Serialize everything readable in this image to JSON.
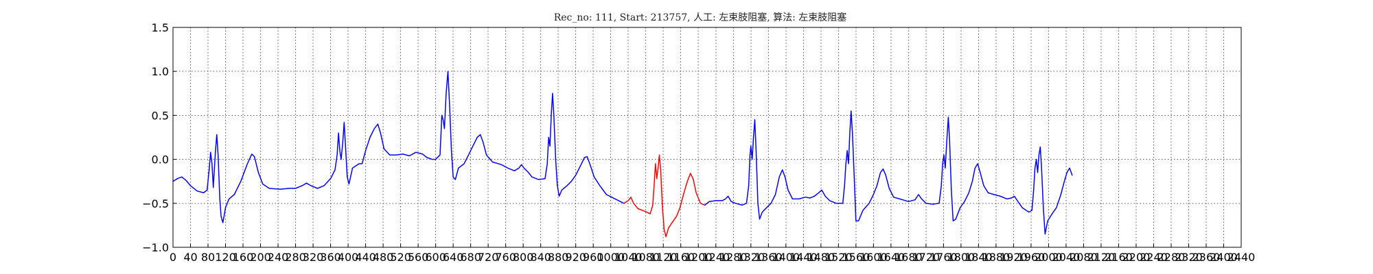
{
  "chart_data": {
    "type": "line",
    "title": "Rec_no: 111, Start: 213757, 人工: 左束肢阻塞, 算法: 左束肢阻塞",
    "xlabel": "",
    "ylabel": "",
    "xlim": [
      0,
      2440
    ],
    "ylim": [
      -1.0,
      1.5
    ],
    "grid": true,
    "x_tick_step": 40,
    "x_tick_labels": [
      "0",
      "40",
      "80",
      "120",
      "160",
      "200",
      "240",
      "280",
      "320",
      "360",
      "400",
      "440",
      "480",
      "520",
      "560",
      "600",
      "640",
      "680",
      "720",
      "760",
      "800",
      "840",
      "880",
      "920",
      "960",
      "1000",
      "1040",
      "1080",
      "1120",
      "1160",
      "1200",
      "1240",
      "1280",
      "1320",
      "1360",
      "1400",
      "1440",
      "1480",
      "1520",
      "1560",
      "1600",
      "1640",
      "1680",
      "1720",
      "1760",
      "1800",
      "1840",
      "1880",
      "1920",
      "1960",
      "2000",
      "2040",
      "2080",
      "2120",
      "2160",
      "2200",
      "2240",
      "2280",
      "2320",
      "2360",
      "2400",
      "2440"
    ],
    "y_ticks": [
      -1.0,
      -0.5,
      0.0,
      0.5,
      1.0,
      1.5
    ],
    "y_tick_labels": [
      "−1.0",
      "−0.5",
      "0.0",
      "0.5",
      "1.0",
      "1.5"
    ],
    "series": [
      {
        "color": "#0000ff",
        "points": [
          [
            0,
            -0.25
          ],
          [
            10,
            -0.22
          ],
          [
            20,
            -0.2
          ],
          [
            30,
            -0.24
          ],
          [
            40,
            -0.3
          ],
          [
            55,
            -0.36
          ],
          [
            70,
            -0.38
          ],
          [
            78,
            -0.35
          ],
          [
            83,
            -0.1
          ],
          [
            86,
            0.08
          ],
          [
            89,
            -0.05
          ],
          [
            92,
            -0.32
          ],
          [
            97,
            0.1
          ],
          [
            100,
            0.28
          ],
          [
            103,
            0.05
          ],
          [
            107,
            -0.45
          ],
          [
            110,
            -0.65
          ],
          [
            114,
            -0.72
          ],
          [
            120,
            -0.55
          ],
          [
            128,
            -0.45
          ],
          [
            140,
            -0.4
          ],
          [
            155,
            -0.25
          ],
          [
            170,
            -0.05
          ],
          [
            180,
            0.06
          ],
          [
            186,
            0.03
          ],
          [
            195,
            -0.15
          ],
          [
            205,
            -0.28
          ],
          [
            220,
            -0.33
          ],
          [
            245,
            -0.34
          ],
          [
            265,
            -0.33
          ],
          [
            280,
            -0.33
          ],
          [
            295,
            -0.3
          ],
          [
            305,
            -0.27
          ],
          [
            315,
            -0.3
          ],
          [
            330,
            -0.33
          ],
          [
            345,
            -0.3
          ],
          [
            360,
            -0.22
          ],
          [
            370,
            -0.12
          ],
          [
            375,
            0.05
          ],
          [
            378,
            0.3
          ],
          [
            381,
            0.1
          ],
          [
            384,
            0.0
          ],
          [
            388,
            0.2
          ],
          [
            391,
            0.42
          ],
          [
            394,
            0.15
          ],
          [
            398,
            -0.2
          ],
          [
            402,
            -0.28
          ],
          [
            410,
            -0.1
          ],
          [
            425,
            -0.05
          ],
          [
            432,
            -0.05
          ],
          [
            440,
            0.1
          ],
          [
            450,
            0.25
          ],
          [
            460,
            0.35
          ],
          [
            468,
            0.4
          ],
          [
            474,
            0.3
          ],
          [
            482,
            0.12
          ],
          [
            495,
            0.05
          ],
          [
            510,
            0.05
          ],
          [
            525,
            0.06
          ],
          [
            540,
            0.04
          ],
          [
            555,
            0.08
          ],
          [
            570,
            0.06
          ],
          [
            580,
            0.02
          ],
          [
            592,
            0.0
          ],
          [
            600,
            0.0
          ],
          [
            610,
            0.05
          ],
          [
            614,
            0.5
          ],
          [
            617,
            0.45
          ],
          [
            620,
            0.35
          ],
          [
            624,
            0.75
          ],
          [
            628,
            1.0
          ],
          [
            632,
            0.6
          ],
          [
            636,
            0.1
          ],
          [
            640,
            -0.2
          ],
          [
            645,
            -0.23
          ],
          [
            652,
            -0.1
          ],
          [
            665,
            -0.05
          ],
          [
            675,
            0.05
          ],
          [
            685,
            0.15
          ],
          [
            695,
            0.25
          ],
          [
            702,
            0.28
          ],
          [
            708,
            0.2
          ],
          [
            716,
            0.05
          ],
          [
            730,
            -0.03
          ],
          [
            750,
            -0.06
          ],
          [
            765,
            -0.1
          ],
          [
            780,
            -0.13
          ],
          [
            790,
            -0.1
          ],
          [
            796,
            -0.06
          ],
          [
            802,
            -0.1
          ],
          [
            812,
            -0.15
          ],
          [
            820,
            -0.2
          ],
          [
            835,
            -0.23
          ],
          [
            850,
            -0.22
          ],
          [
            855,
            -0.05
          ],
          [
            858,
            0.25
          ],
          [
            861,
            0.15
          ],
          [
            864,
            0.5
          ],
          [
            867,
            0.75
          ],
          [
            870,
            0.5
          ],
          [
            874,
            0.0
          ],
          [
            878,
            -0.3
          ],
          [
            882,
            -0.42
          ],
          [
            888,
            -0.35
          ],
          [
            900,
            -0.3
          ],
          [
            910,
            -0.25
          ],
          [
            920,
            -0.18
          ],
          [
            930,
            -0.08
          ],
          [
            940,
            0.02
          ],
          [
            946,
            0.03
          ],
          [
            952,
            -0.05
          ],
          [
            962,
            -0.2
          ],
          [
            975,
            -0.3
          ],
          [
            990,
            -0.4
          ],
          [
            1010,
            -0.45
          ],
          [
            1030,
            -0.5
          ]
        ]
      },
      {
        "color": "#ff0000",
        "points": [
          [
            1030,
            -0.5
          ],
          [
            1040,
            -0.47
          ],
          [
            1046,
            -0.43
          ],
          [
            1052,
            -0.5
          ],
          [
            1062,
            -0.56
          ],
          [
            1072,
            -0.58
          ],
          [
            1082,
            -0.6
          ],
          [
            1090,
            -0.62
          ],
          [
            1096,
            -0.52
          ],
          [
            1099,
            -0.3
          ],
          [
            1102,
            -0.05
          ],
          [
            1105,
            -0.22
          ],
          [
            1108,
            -0.1
          ],
          [
            1111,
            0.05
          ],
          [
            1114,
            -0.12
          ],
          [
            1118,
            -0.55
          ],
          [
            1122,
            -0.8
          ],
          [
            1126,
            -0.88
          ],
          [
            1132,
            -0.78
          ],
          [
            1140,
            -0.72
          ],
          [
            1150,
            -0.65
          ],
          [
            1158,
            -0.55
          ],
          [
            1166,
            -0.4
          ],
          [
            1175,
            -0.25
          ],
          [
            1182,
            -0.16
          ],
          [
            1188,
            -0.22
          ],
          [
            1195,
            -0.38
          ],
          [
            1205,
            -0.5
          ],
          [
            1215,
            -0.52
          ]
        ]
      },
      {
        "color": "#0000ff",
        "points": [
          [
            1215,
            -0.52
          ],
          [
            1225,
            -0.48
          ],
          [
            1240,
            -0.47
          ],
          [
            1255,
            -0.47
          ],
          [
            1262,
            -0.45
          ],
          [
            1268,
            -0.42
          ],
          [
            1275,
            -0.48
          ],
          [
            1285,
            -0.5
          ],
          [
            1300,
            -0.52
          ],
          [
            1310,
            -0.5
          ],
          [
            1315,
            -0.3
          ],
          [
            1318,
            0.05
          ],
          [
            1320,
            0.15
          ],
          [
            1323,
            0.0
          ],
          [
            1326,
            0.25
          ],
          [
            1329,
            0.45
          ],
          [
            1332,
            0.1
          ],
          [
            1336,
            -0.5
          ],
          [
            1340,
            -0.68
          ],
          [
            1346,
            -0.6
          ],
          [
            1356,
            -0.55
          ],
          [
            1366,
            -0.5
          ],
          [
            1376,
            -0.4
          ],
          [
            1385,
            -0.2
          ],
          [
            1392,
            -0.12
          ],
          [
            1398,
            -0.2
          ],
          [
            1405,
            -0.35
          ],
          [
            1415,
            -0.45
          ],
          [
            1430,
            -0.45
          ],
          [
            1445,
            -0.43
          ],
          [
            1455,
            -0.44
          ],
          [
            1465,
            -0.42
          ],
          [
            1475,
            -0.38
          ],
          [
            1482,
            -0.35
          ],
          [
            1490,
            -0.42
          ],
          [
            1500,
            -0.47
          ],
          [
            1515,
            -0.5
          ],
          [
            1530,
            -0.5
          ],
          [
            1534,
            -0.3
          ],
          [
            1537,
            -0.05
          ],
          [
            1540,
            0.1
          ],
          [
            1543,
            -0.05
          ],
          [
            1546,
            0.3
          ],
          [
            1549,
            0.55
          ],
          [
            1552,
            0.3
          ],
          [
            1556,
            -0.2
          ],
          [
            1560,
            -0.7
          ],
          [
            1566,
            -0.7
          ],
          [
            1576,
            -0.58
          ],
          [
            1590,
            -0.5
          ],
          [
            1600,
            -0.4
          ],
          [
            1608,
            -0.3
          ],
          [
            1616,
            -0.15
          ],
          [
            1622,
            -0.11
          ],
          [
            1628,
            -0.18
          ],
          [
            1636,
            -0.33
          ],
          [
            1646,
            -0.43
          ],
          [
            1660,
            -0.45
          ],
          [
            1680,
            -0.48
          ],
          [
            1695,
            -0.46
          ],
          [
            1703,
            -0.4
          ],
          [
            1710,
            -0.45
          ],
          [
            1720,
            -0.5
          ],
          [
            1735,
            -0.51
          ],
          [
            1750,
            -0.5
          ],
          [
            1755,
            -0.3
          ],
          [
            1758,
            -0.05
          ],
          [
            1761,
            0.05
          ],
          [
            1764,
            -0.1
          ],
          [
            1768,
            0.25
          ],
          [
            1771,
            0.48
          ],
          [
            1774,
            0.2
          ],
          [
            1778,
            -0.35
          ],
          [
            1782,
            -0.7
          ],
          [
            1788,
            -0.68
          ],
          [
            1798,
            -0.55
          ],
          [
            1808,
            -0.48
          ],
          [
            1818,
            -0.38
          ],
          [
            1826,
            -0.25
          ],
          [
            1832,
            -0.1
          ],
          [
            1838,
            -0.05
          ],
          [
            1844,
            -0.15
          ],
          [
            1852,
            -0.3
          ],
          [
            1862,
            -0.38
          ],
          [
            1875,
            -0.4
          ],
          [
            1890,
            -0.42
          ],
          [
            1905,
            -0.45
          ],
          [
            1915,
            -0.44
          ],
          [
            1922,
            -0.42
          ],
          [
            1930,
            -0.48
          ],
          [
            1940,
            -0.55
          ],
          [
            1955,
            -0.6
          ],
          [
            1962,
            -0.58
          ],
          [
            1966,
            -0.35
          ],
          [
            1969,
            -0.1
          ],
          [
            1972,
            0.0
          ],
          [
            1975,
            -0.15
          ],
          [
            1978,
            0.05
          ],
          [
            1981,
            0.14
          ],
          [
            1984,
            -0.1
          ],
          [
            1988,
            -0.55
          ],
          [
            1992,
            -0.85
          ],
          [
            1998,
            -0.7
          ],
          [
            2008,
            -0.62
          ],
          [
            2018,
            -0.55
          ],
          [
            2028,
            -0.4
          ],
          [
            2036,
            -0.25
          ],
          [
            2042,
            -0.15
          ],
          [
            2048,
            -0.1
          ],
          [
            2054,
            -0.18
          ]
        ]
      }
    ]
  }
}
